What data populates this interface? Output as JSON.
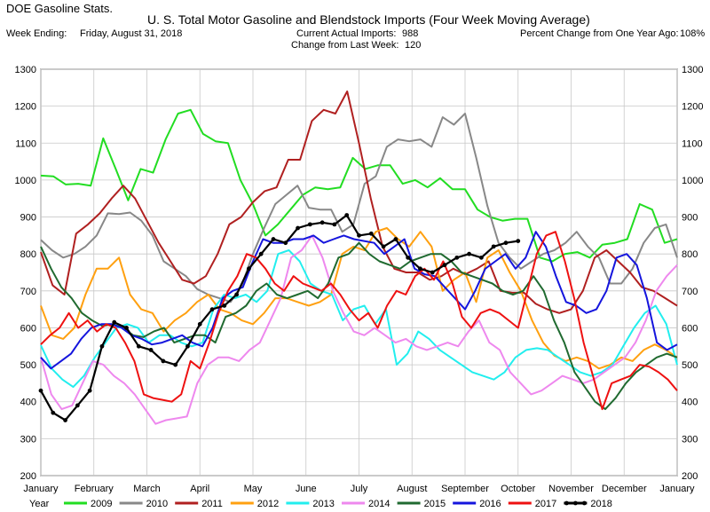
{
  "header": {
    "app_title": "DOE Gasoline Stats.",
    "week_ending_label": "Week Ending:",
    "week_ending_value": "Friday, August 31, 2018",
    "current_imports_label": "Current Actual Imports:",
    "current_imports_value": "988",
    "change_label": "Change from Last Week:",
    "change_value": "120",
    "pct_change_label": "Percent Change from One Year Ago:",
    "pct_change_value": "108%"
  },
  "chart_data": {
    "type": "line",
    "title": "U. S. Total Motor Gasoline and Blendstock Imports (Four Week Moving Average)",
    "ylim": [
      200,
      1300
    ],
    "y_ticks": [
      200,
      300,
      400,
      500,
      600,
      700,
      800,
      900,
      1000,
      1100,
      1200,
      1300
    ],
    "x_ticks": [
      "January",
      "February",
      "March",
      "April",
      "May",
      "June",
      "July",
      "August",
      "September",
      "October",
      "November",
      "December",
      "January"
    ],
    "legend_title": "Year",
    "legend_position": "bottom",
    "grid": true,
    "series": [
      {
        "name": "2009",
        "color": "#22dd22",
        "values": [
          1012,
          1010,
          988,
          990,
          985,
          1113,
          1030,
          945,
          1030,
          1020,
          1110,
          1180,
          1190,
          1125,
          1105,
          1100,
          1000,
          935,
          850,
          880,
          920,
          960,
          980,
          975,
          980,
          1060,
          1030,
          1040,
          1040,
          990,
          1000,
          980,
          1005,
          975,
          975,
          920,
          900,
          890,
          895,
          895,
          790,
          780,
          800,
          805,
          790,
          825,
          830,
          840,
          935,
          920,
          830,
          840
        ]
      },
      {
        "name": "2010",
        "color": "#888888",
        "values": [
          838,
          810,
          790,
          800,
          820,
          850,
          910,
          908,
          912,
          890,
          850,
          780,
          760,
          740,
          705,
          690,
          680,
          670,
          715,
          800,
          870,
          935,
          960,
          985,
          925,
          920,
          920,
          860,
          880,
          990,
          1010,
          1090,
          1110,
          1105,
          1110,
          1090,
          1170,
          1150,
          1180,
          1060,
          930,
          830,
          790,
          760,
          780,
          800,
          810,
          830,
          860,
          820,
          790,
          720,
          720,
          760,
          830,
          870,
          880,
          790
        ]
      },
      {
        "name": "2011",
        "color": "#b02020",
        "values": [
          805,
          715,
          690,
          855,
          880,
          910,
          950,
          985,
          950,
          890,
          830,
          780,
          730,
          720,
          740,
          800,
          880,
          900,
          940,
          970,
          980,
          1055,
          1055,
          1160,
          1190,
          1180,
          1240,
          1100,
          950,
          820,
          760,
          750,
          750,
          730,
          740,
          760,
          745,
          760,
          780,
          700,
          695,
          695,
          665,
          650,
          640,
          650,
          700,
          790,
          810,
          780,
          750,
          710,
          700,
          680,
          660
        ]
      },
      {
        "name": "2012",
        "color": "#ffa010",
        "values": [
          660,
          580,
          570,
          600,
          690,
          760,
          760,
          790,
          690,
          650,
          640,
          590,
          620,
          640,
          670,
          690,
          650,
          640,
          620,
          610,
          640,
          680,
          680,
          670,
          660,
          670,
          690,
          800,
          820,
          810,
          860,
          870,
          840,
          820,
          860,
          820,
          700,
          730,
          750,
          670,
          790,
          810,
          750,
          700,
          620,
          560,
          525,
          510,
          520,
          510,
          490,
          500,
          520,
          510,
          540,
          555,
          540,
          520
        ]
      },
      {
        "name": "2013",
        "color": "#22eeee",
        "values": [
          553,
          490,
          460,
          440,
          470,
          520,
          560,
          600,
          610,
          600,
          560,
          580,
          580,
          560,
          550,
          560,
          650,
          690,
          680,
          690,
          670,
          700,
          800,
          810,
          780,
          720,
          700,
          690,
          620,
          650,
          660,
          610,
          650,
          500,
          530,
          590,
          570,
          540,
          520,
          500,
          480,
          470,
          460,
          480,
          520,
          540,
          545,
          540,
          520,
          500,
          480,
          470,
          480,
          500,
          550,
          600,
          640,
          660,
          610,
          500
        ]
      },
      {
        "name": "2014",
        "color": "#ee88ee",
        "values": [
          520,
          420,
          380,
          390,
          450,
          510,
          500,
          470,
          450,
          420,
          380,
          340,
          350,
          355,
          360,
          450,
          500,
          520,
          520,
          510,
          540,
          560,
          620,
          680,
          790,
          810,
          850,
          790,
          700,
          640,
          590,
          580,
          600,
          580,
          560,
          570,
          550,
          540,
          550,
          560,
          550,
          590,
          620,
          560,
          540,
          480,
          450,
          420,
          430,
          450,
          470,
          460,
          450,
          460,
          480,
          500,
          520,
          560,
          620,
          700,
          740,
          770
        ]
      },
      {
        "name": "2015",
        "color": "#206a30",
        "values": [
          820,
          760,
          710,
          680,
          640,
          620,
          605,
          610,
          600,
          580,
          575,
          590,
          600,
          560,
          570,
          580,
          580,
          560,
          630,
          640,
          660,
          700,
          720,
          690,
          680,
          690,
          700,
          680,
          720,
          790,
          800,
          830,
          800,
          780,
          770,
          760,
          780,
          790,
          800,
          800,
          780,
          750,
          740,
          730,
          720,
          700,
          690,
          700,
          740,
          700,
          620,
          560,
          480,
          440,
          400,
          380,
          410,
          450,
          480,
          500,
          520,
          530,
          520
        ]
      },
      {
        "name": "2016",
        "color": "#1515dd",
        "values": [
          520,
          490,
          510,
          530,
          570,
          600,
          610,
          610,
          600,
          580,
          570,
          555,
          560,
          570,
          580,
          560,
          550,
          600,
          680,
          700,
          710,
          780,
          840,
          830,
          830,
          840,
          840,
          850,
          830,
          840,
          850,
          840,
          835,
          830,
          800,
          820,
          840,
          760,
          745,
          740,
          710,
          680,
          650,
          700,
          760,
          780,
          800,
          760,
          790,
          860,
          820,
          740,
          670,
          660,
          640,
          650,
          700,
          790,
          800,
          770,
          680,
          560,
          540,
          555
        ]
      },
      {
        "name": "2017",
        "color": "#ee1111",
        "values": [
          555,
          580,
          600,
          640,
          600,
          620,
          590,
          610,
          600,
          560,
          510,
          420,
          410,
          405,
          400,
          420,
          510,
          490,
          560,
          640,
          700,
          740,
          800,
          790,
          760,
          720,
          700,
          740,
          720,
          710,
          700,
          720,
          690,
          650,
          620,
          640,
          600,
          660,
          700,
          690,
          740,
          760,
          730,
          780,
          720,
          630,
          600,
          640,
          650,
          640,
          620,
          600,
          700,
          800,
          850,
          860,
          780,
          680,
          560,
          470,
          380,
          450,
          460,
          470,
          500,
          495,
          480,
          460,
          430
        ]
      },
      {
        "name": "2018",
        "color": "#000000",
        "markers": true,
        "values": [
          430,
          370,
          350,
          390,
          430,
          550,
          615,
          600,
          550,
          540,
          510,
          500,
          550,
          610,
          650,
          660,
          690,
          760,
          800,
          840,
          830,
          870,
          880,
          885,
          880,
          905,
          850,
          855,
          820,
          840,
          790,
          760,
          750,
          770,
          790,
          800,
          790,
          820,
          830,
          835
        ]
      }
    ]
  }
}
